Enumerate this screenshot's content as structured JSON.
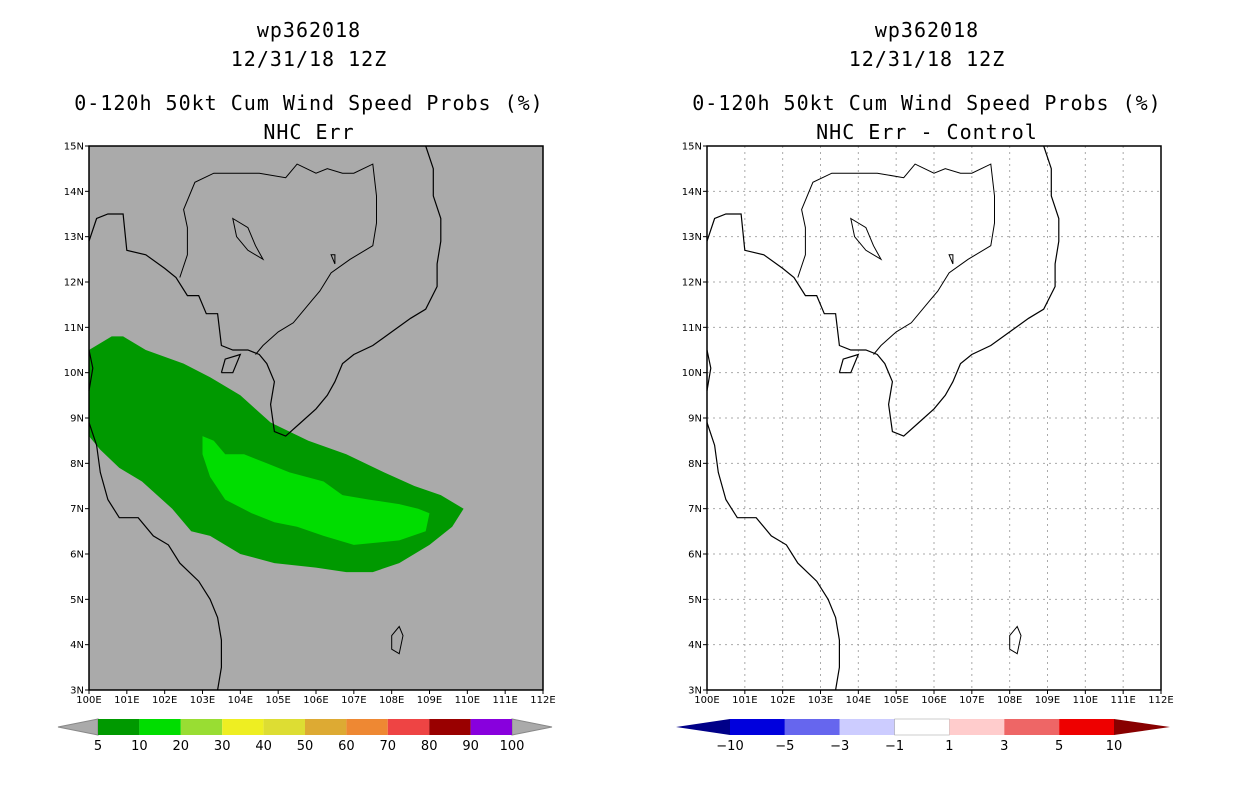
{
  "left": {
    "storm_id": "wp362018",
    "datetime": "12/31/18 12Z",
    "product": "0-120h 50kt Cum Wind Speed Probs (%)",
    "subtitle": "NHC Err",
    "lat_labels": [
      "15N",
      "14N",
      "13N",
      "12N",
      "11N",
      "10N",
      "9N",
      "8N",
      "7N",
      "6N",
      "5N",
      "4N",
      "3N"
    ],
    "lon_labels": [
      "100E",
      "101E",
      "102E",
      "103E",
      "104E",
      "105E",
      "106E",
      "107E",
      "108E",
      "109E",
      "110E",
      "111E",
      "112E"
    ],
    "colorbar": {
      "labels": [
        "5",
        "10",
        "20",
        "30",
        "40",
        "50",
        "60",
        "70",
        "80",
        "90",
        "100"
      ],
      "colors": [
        "#009900",
        "#00dd00",
        "#99dd33",
        "#eeee22",
        "#dddd33",
        "#ddaa33",
        "#ee8833",
        "#ee4444",
        "#990000",
        "#8800dd"
      ],
      "end_color": "#aaaaaa"
    },
    "background_color": "#aaaaaa",
    "contour_colors": [
      "#009900",
      "#00dd00"
    ]
  },
  "right": {
    "storm_id": "wp362018",
    "datetime": "12/31/18 12Z",
    "product": "0-120h 50kt Cum Wind Speed Probs (%)",
    "subtitle": "NHC Err - Control",
    "lat_labels": [
      "15N",
      "14N",
      "13N",
      "12N",
      "11N",
      "10N",
      "9N",
      "8N",
      "7N",
      "6N",
      "5N",
      "4N",
      "3N"
    ],
    "lon_labels": [
      "100E",
      "101E",
      "102E",
      "103E",
      "104E",
      "105E",
      "106E",
      "107E",
      "108E",
      "109E",
      "110E",
      "111E",
      "112E"
    ],
    "colorbar": {
      "labels": [
        "-10",
        "-5",
        "-3",
        "-1",
        "1",
        "3",
        "5",
        "10"
      ],
      "colors": [
        "#0000dd",
        "#6666ee",
        "#ccccff",
        "#ffffff",
        "#ffcccc",
        "#ee6666",
        "#ee0000"
      ],
      "end_left_color": "#000088",
      "end_right_color": "#880000"
    }
  }
}
